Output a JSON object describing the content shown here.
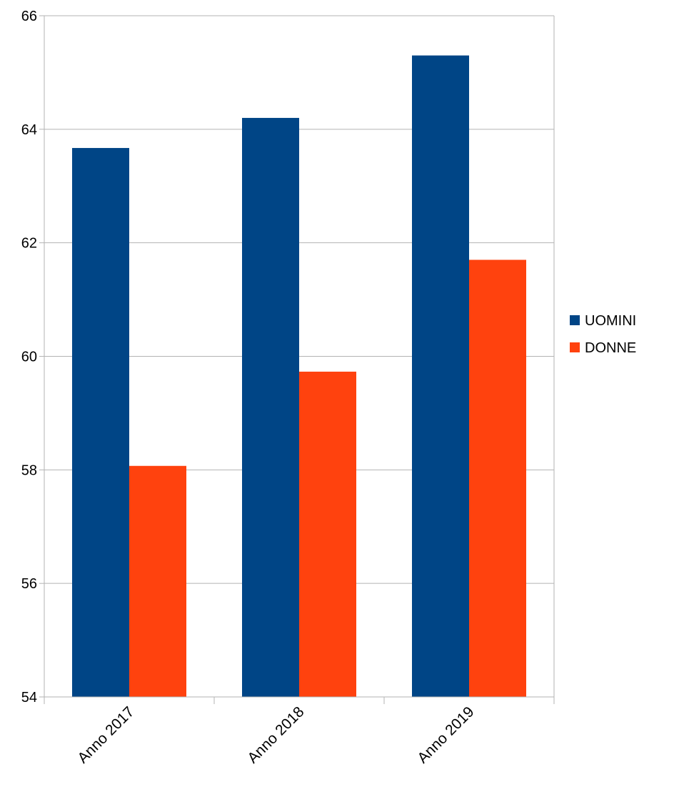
{
  "chart_data": {
    "type": "bar",
    "categories": [
      "Anno 2017",
      "Anno 2018",
      "Anno 2019"
    ],
    "series": [
      {
        "name": "UOMINI",
        "values": [
          63.67,
          64.2,
          65.3
        ],
        "color": "#004586"
      },
      {
        "name": "DONNE",
        "values": [
          58.07,
          59.73,
          61.7
        ],
        "color": "#ff420e"
      }
    ],
    "title": "",
    "xlabel": "",
    "ylabel": "",
    "ylim": [
      54,
      66
    ],
    "yticks": [
      54,
      56,
      58,
      60,
      62,
      64,
      66
    ],
    "ytick_labels": [
      "54",
      "56",
      "58",
      "60",
      "62",
      "64",
      "66"
    ],
    "grid": true,
    "grid_color": "#b3b3b3",
    "legend_position": "right"
  }
}
